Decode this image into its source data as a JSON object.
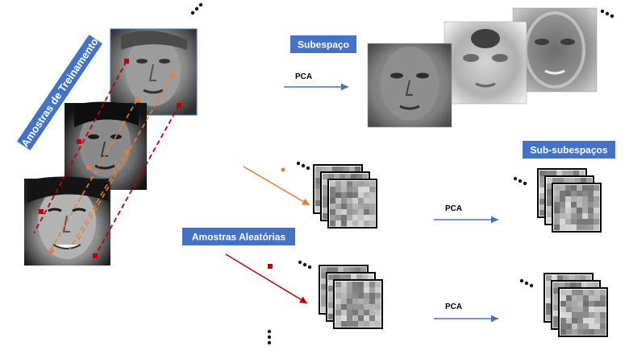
{
  "labels": {
    "training_samples": "Amostras de Treinamento",
    "subspace": "Subespaço",
    "sub_subspaces": "Sub-subespaços",
    "random_samples": "Amostras Aleatórias",
    "pca": "PCA"
  },
  "colors": {
    "tag_fill": "#4472C4",
    "arrow_blue": "#4472C4",
    "arrow_orange": "#ED7D31",
    "arrow_red": "#C00000",
    "dash_red": "#C00000",
    "dash_orange": "#ED7D31"
  },
  "icons": {
    "ellipsis": "three-dots",
    "face_photo": "grayscale-face",
    "eigenface": "grayscale-eigenface",
    "random_patch": "pixel-mosaic"
  }
}
